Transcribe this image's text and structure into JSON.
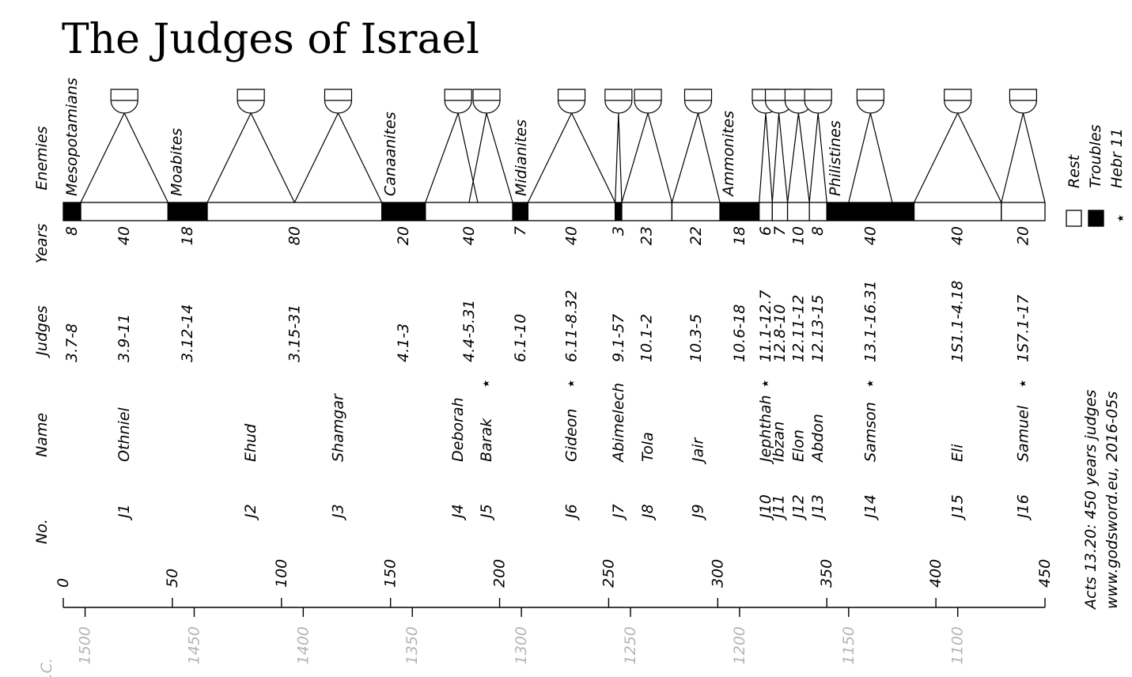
{
  "title": "The Judges of Israel",
  "row_labels": {
    "enemies": "Enemies",
    "years": "Years",
    "judges": "Judges",
    "name": "Name",
    "no": "No."
  },
  "legend": {
    "rest": "Rest",
    "troubles": "Troubles",
    "hebr": "Hebr 11",
    "hebr_symbol": "⋆"
  },
  "note": {
    "line1": "Acts 13.20: 450 years judges",
    "line2": "www.godsword.eu, 2016-05s"
  },
  "bc_label": "B.C.",
  "star_symbol": "⋆",
  "enemies": [
    {
      "name": "Mesopotamians",
      "start": 0
    },
    {
      "name": "Moabites",
      "start": 48
    },
    {
      "name": "Canaanites",
      "start": 146
    },
    {
      "name": "Midianites",
      "start": 206
    },
    {
      "name": "Ammonites",
      "start": 301
    },
    {
      "name": "Philistines",
      "start": 350
    }
  ],
  "periods": [
    {
      "type": "trouble",
      "years": 8,
      "ref": "3.7-8"
    },
    {
      "type": "rest",
      "years": 40,
      "ref": "3.9-11"
    },
    {
      "type": "trouble",
      "years": 18,
      "ref": "3.12-14"
    },
    {
      "type": "rest",
      "years": 80,
      "ref": "3.15-31"
    },
    {
      "type": "trouble",
      "years": 20,
      "ref": "4.1-3"
    },
    {
      "type": "rest",
      "years": 40,
      "ref": "4.4-5.31"
    },
    {
      "type": "trouble",
      "years": 7,
      "ref": "6.1-10"
    },
    {
      "type": "rest",
      "years": 40,
      "ref": "6.11-8.32"
    },
    {
      "type": "trouble",
      "years": 3,
      "ref": "9.1-57"
    },
    {
      "type": "rest",
      "years": 23,
      "ref": "10.1-2"
    },
    {
      "type": "rest",
      "years": 22,
      "ref": "10.3-5"
    },
    {
      "type": "trouble",
      "years": 18,
      "ref": "10.6-18"
    },
    {
      "type": "rest",
      "years": 6,
      "ref": "11.1-12.7"
    },
    {
      "type": "rest",
      "years": 7,
      "ref": "12.8-10"
    },
    {
      "type": "rest",
      "years": 10,
      "ref": "12.11-12"
    },
    {
      "type": "rest",
      "years": 8,
      "ref": "12.13-15"
    },
    {
      "type": "trouble",
      "years": 40,
      "ref": "13.1-16.31"
    },
    {
      "type": "rest",
      "years": 40,
      "ref": "1S1.1-4.18"
    },
    {
      "type": "rest",
      "years": 20,
      "ref": "1S7.1-17"
    }
  ],
  "judges": [
    {
      "no": "J1",
      "name": "Othniel",
      "mid": 28,
      "span": [
        8,
        48
      ],
      "hebr": false
    },
    {
      "no": "J2",
      "name": "Ehud",
      "mid": 86,
      "span": [
        66,
        106
      ],
      "hebr": false
    },
    {
      "no": "J3",
      "name": "Shamgar",
      "mid": 126,
      "span": [
        106,
        146
      ],
      "hebr": false
    },
    {
      "no": "J4",
      "name": "Deborah",
      "mid": 181,
      "span": [
        166,
        190
      ],
      "hebr": false
    },
    {
      "no": "J5",
      "name": "Barak",
      "mid": 194,
      "span": [
        186,
        206
      ],
      "hebr": true
    },
    {
      "no": "J6",
      "name": "Gideon",
      "mid": 233,
      "span": [
        213,
        253
      ],
      "hebr": true
    },
    {
      "no": "J7",
      "name": "Abimelech",
      "mid": 254.5,
      "span": [
        253,
        256
      ],
      "hebr": false
    },
    {
      "no": "J8",
      "name": "Tola",
      "mid": 268,
      "span": [
        256,
        279
      ],
      "hebr": false
    },
    {
      "no": "J9",
      "name": "Jair",
      "mid": 291,
      "span": [
        279,
        301
      ],
      "hebr": false
    },
    {
      "no": "J10",
      "name": "Jephthah",
      "mid": 322,
      "span": [
        319,
        325
      ],
      "hebr": true
    },
    {
      "no": "J11",
      "name": "Ibzan",
      "mid": 328,
      "span": [
        325,
        332
      ],
      "hebr": false
    },
    {
      "no": "J12",
      "name": "Elon",
      "mid": 337,
      "span": [
        332,
        342
      ],
      "hebr": false
    },
    {
      "no": "J13",
      "name": "Abdon",
      "mid": 346,
      "span": [
        342,
        350
      ],
      "hebr": false
    },
    {
      "no": "J14",
      "name": "Samson",
      "mid": 370,
      "span": [
        360,
        380
      ],
      "hebr": true
    },
    {
      "no": "J15",
      "name": "Eli",
      "mid": 410,
      "span": [
        390,
        430
      ],
      "hebr": false
    },
    {
      "no": "J16",
      "name": "Samuel",
      "mid": 440,
      "span": [
        430,
        450
      ],
      "hebr": true
    }
  ],
  "axis_years": {
    "ticks": [
      0,
      50,
      100,
      150,
      200,
      250,
      300,
      350,
      400,
      450
    ],
    "labels": [
      "0",
      "50",
      "100",
      "150",
      "200",
      "250",
      "300",
      "350",
      "400",
      "450"
    ]
  },
  "axis_bc": {
    "ticks": [
      1500,
      1450,
      1400,
      1350,
      1300,
      1250,
      1200,
      1150,
      1100
    ],
    "labels": [
      "1500",
      "1450",
      "1400",
      "1350",
      "1300",
      "1250",
      "1200",
      "1150",
      "1100"
    ]
  }
}
